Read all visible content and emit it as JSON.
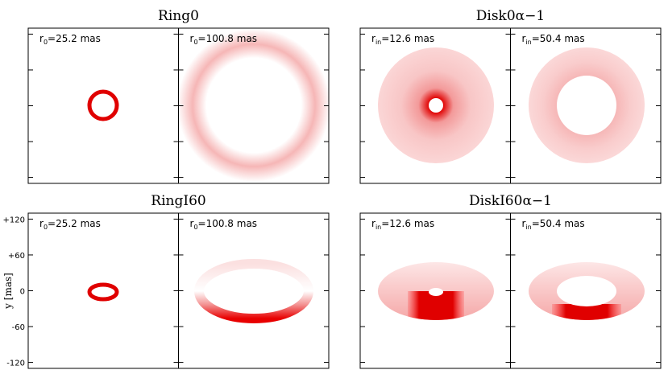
{
  "groups": [
    {
      "title": "Ring0",
      "panels": [
        {
          "label": {
            "symbol": "r",
            "sub": "0",
            "text": "=25.2 mas"
          }
        },
        {
          "label": {
            "symbol": "r",
            "sub": "0",
            "text": "=100.8 mas"
          }
        }
      ]
    },
    {
      "title": "Disk0α−1",
      "panels": [
        {
          "label": {
            "symbol": "r",
            "sub": "in",
            "text": "=12.6 mas"
          }
        },
        {
          "label": {
            "symbol": "r",
            "sub": "in",
            "text": "=50.4 mas"
          }
        }
      ]
    },
    {
      "title": "RingI60",
      "panels": [
        {
          "label": {
            "symbol": "r",
            "sub": "0",
            "text": "=25.2 mas"
          }
        },
        {
          "label": {
            "symbol": "r",
            "sub": "0",
            "text": "=100.8 mas"
          }
        }
      ]
    },
    {
      "title": "DiskI60α−1",
      "panels": [
        {
          "label": {
            "symbol": "r",
            "sub": "in",
            "text": "=12.6 mas"
          }
        },
        {
          "label": {
            "symbol": "r",
            "sub": "in",
            "text": "=50.4 mas"
          }
        }
      ]
    }
  ],
  "y_axis": {
    "label": "y [mas]",
    "ylim": [
      -130,
      130
    ],
    "yticks": [
      {
        "value": 120,
        "label": "+120"
      },
      {
        "value": 60,
        "label": "+60"
      },
      0,
      -60,
      -120
    ]
  }
}
